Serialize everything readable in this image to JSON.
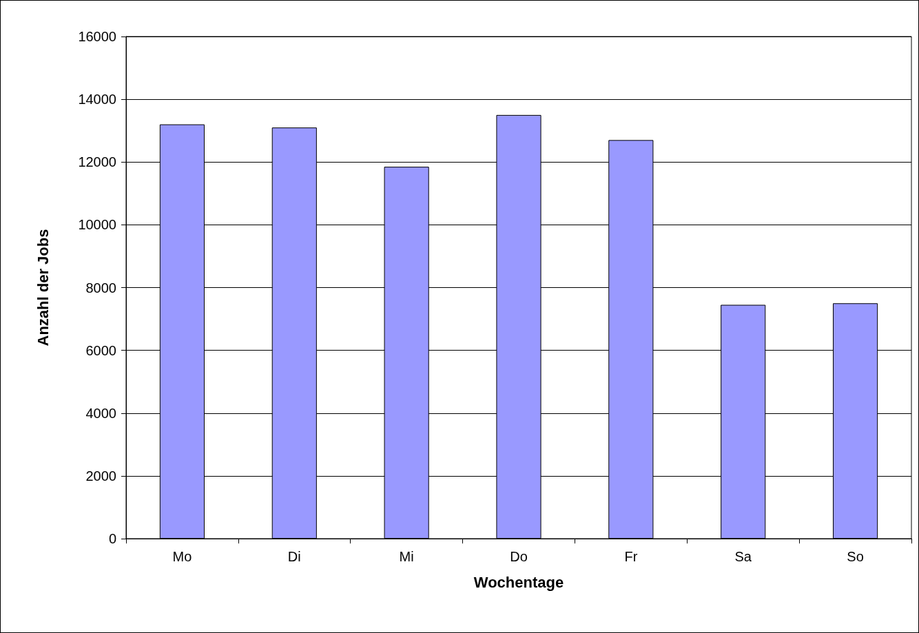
{
  "chart_data": {
    "type": "bar",
    "xlabel": "Wochentage",
    "ylabel": "Anzahl der Jobs",
    "categories": [
      "Mo",
      "Di",
      "Mi",
      "Do",
      "Fr",
      "Sa",
      "So"
    ],
    "values": [
      13200,
      13100,
      11850,
      13500,
      12700,
      7450,
      7500
    ],
    "color": "#9999ff",
    "ylim": [
      0,
      16000
    ],
    "yticks": [
      0,
      2000,
      4000,
      6000,
      8000,
      10000,
      12000,
      14000,
      16000
    ],
    "grid": "y"
  }
}
